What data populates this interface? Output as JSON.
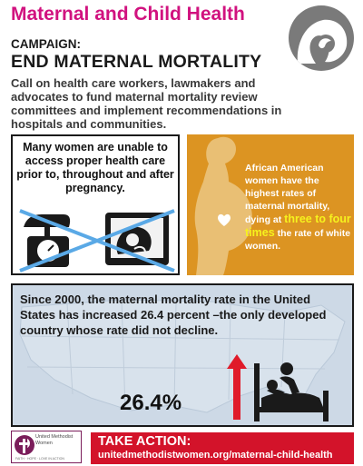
{
  "header": {
    "title": "Maternal and Child Health",
    "logo_icon": "mother-child-profile-icon"
  },
  "campaign": {
    "label": "CAMPAIGN:",
    "headline": "END MATERNAL MORTALITY",
    "description": "Call on health care workers, lawmakers and advocates to fund maternal mortality review committees and implement recommendations in hospitals and communities."
  },
  "access_card": {
    "text": "Many women are unable to access proper health care prior to, throughout and after pregnancy.",
    "icons": [
      "baby-scale-icon",
      "ultrasound-monitor-icon"
    ]
  },
  "disparity_card": {
    "text_before": "African American women have the highest rates of maternal mortality, dying at ",
    "highlight": "three to four times",
    "text_after": " the rate of white women.",
    "icon": "pregnant-woman-silhouette-icon"
  },
  "trend_card": {
    "text": "Since 2000, the maternal mortality rate in the United States has increased 26.4 percent –the only developed country whose rate did not decline.",
    "stat": "26.4%",
    "icons": [
      "up-arrow-icon",
      "hospital-bed-icon"
    ]
  },
  "footer": {
    "org_name": "United Methodist Women",
    "org_tagline": "FAITH · HOPE · LOVE IN ACTION",
    "action_label": "TAKE ACTION:",
    "action_url": "unitedmethodistwomen.org/maternal-child-health"
  },
  "colors": {
    "title_magenta": "#d1127f",
    "card_orange": "#dc9422",
    "highlight_yellow": "#f6f21d",
    "action_red": "#d3132a",
    "arrow_red": "#e01b2a",
    "map_blue": "#cdd9e6"
  }
}
